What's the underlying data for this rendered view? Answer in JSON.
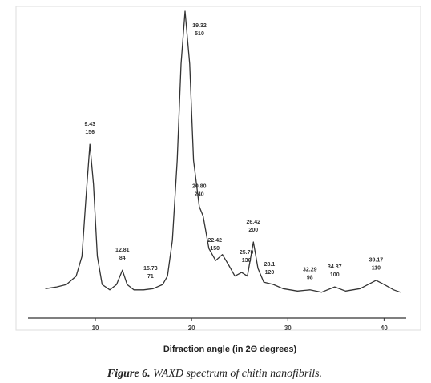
{
  "chart_data": {
    "type": "line",
    "x_label": "Difraction angle (in 2Θ degrees)",
    "caption_label": "Figure 6.",
    "caption": "WAXD spectrum of chitin nanofibrils.",
    "xlim": [
      3,
      42.3
    ],
    "xticks": [
      10,
      20,
      30,
      40
    ],
    "ylim": [
      0,
      520
    ],
    "color": "#333333",
    "series": [
      {
        "x": [
          4.8,
          6,
          7,
          8,
          8.6,
          9.0,
          9.43,
          9.8,
          10.2,
          10.7,
          11.5,
          12.2,
          12.81,
          13.3,
          14,
          15,
          16,
          17,
          17.5,
          18,
          18.5,
          18.9,
          19.32,
          19.8,
          20.2,
          20.8,
          21.2,
          21.8,
          22.5,
          23.2,
          23.8,
          24.5,
          25.2,
          25.8,
          26.42,
          26.9,
          27.5,
          28.5,
          29.5,
          31,
          32.29,
          33.5,
          34.87,
          36,
          37.5,
          39.17,
          40,
          41,
          41.7
        ],
        "values": [
          49,
          52,
          56,
          70,
          103,
          197,
          290,
          223,
          103,
          56,
          47,
          56,
          80,
          56,
          47,
          47,
          49,
          56,
          70,
          130,
          263,
          424,
          512,
          424,
          263,
          186,
          170,
          116,
          96,
          106,
          90,
          70,
          76,
          70,
          127,
          83,
          60,
          56,
          49,
          45,
          47,
          43,
          52,
          45,
          49,
          63,
          56,
          47,
          43
        ]
      }
    ],
    "annotations": [
      {
        "x": 9.43,
        "lines": [
          "9.43",
          "156"
        ]
      },
      {
        "x": 12.81,
        "lines": [
          "12.81",
          "84"
        ]
      },
      {
        "x": 15.73,
        "lines": [
          "15.73",
          "71"
        ]
      },
      {
        "x": 19.32,
        "lines": [
          "19.32",
          "510"
        ]
      },
      {
        "x": 20.8,
        "lines": [
          "20.80",
          "240"
        ]
      },
      {
        "x": 22.42,
        "lines": [
          "22.42",
          "150"
        ]
      },
      {
        "x": 25.7,
        "lines": [
          "25.70",
          "130"
        ]
      },
      {
        "x": 26.42,
        "lines": [
          "26.42",
          "200"
        ]
      },
      {
        "x": 28.1,
        "lines": [
          "28.1",
          "120"
        ]
      },
      {
        "x": 32.29,
        "lines": [
          "32.29",
          "98"
        ]
      },
      {
        "x": 34.87,
        "lines": [
          "34.87",
          "100"
        ]
      },
      {
        "x": 39.17,
        "lines": [
          "39.17",
          "110"
        ]
      }
    ]
  }
}
